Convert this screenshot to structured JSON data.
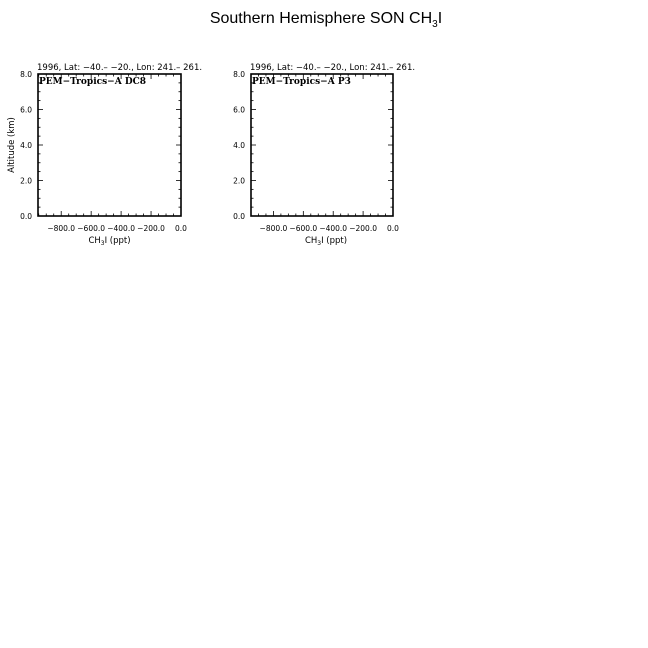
{
  "title": {
    "main": "Southern Hemisphere SON CH",
    "sub": "3",
    "tail": "I"
  },
  "chart_data": [
    {
      "type": "line",
      "header": "1996, Lat: −40.– −20., Lon: 241.– 261.",
      "label": "PEM−Tropics−A DC8",
      "xlabel": {
        "main": "CH",
        "sub": "3",
        "tail": "I (ppt)"
      },
      "ylabel": "Altitude (km)",
      "xlim": [
        -955,
        0
      ],
      "ylim": [
        0,
        8
      ],
      "xticks": [
        -800,
        -600,
        -400,
        -200,
        0
      ],
      "xtick_labels": [
        "−800.0",
        "−600.0",
        "−400.0",
        "−200.0",
        "0.0"
      ],
      "yticks": [
        0,
        2,
        4,
        6,
        8
      ],
      "ytick_labels": [
        "0.0",
        "2.0",
        "4.0",
        "6.0",
        "8.0"
      ],
      "series": []
    },
    {
      "type": "line",
      "header": "1996, Lat: −40.– −20., Lon: 241.– 261.",
      "label": "PEM−Tropics−A P3",
      "xlabel": {
        "main": "CH",
        "sub": "3",
        "tail": "I (ppt)"
      },
      "ylabel": "",
      "xlim": [
        -950,
        0
      ],
      "ylim": [
        0,
        8
      ],
      "xticks": [
        -800,
        -600,
        -400,
        -200,
        0
      ],
      "xtick_labels": [
        "−800.0",
        "−600.0",
        "−400.0",
        "−200.0",
        "0.0"
      ],
      "yticks": [
        0,
        2,
        4,
        6,
        8
      ],
      "ytick_labels": [
        "0.0",
        "2.0",
        "4.0",
        "6.0",
        "8.0"
      ],
      "series": []
    }
  ]
}
